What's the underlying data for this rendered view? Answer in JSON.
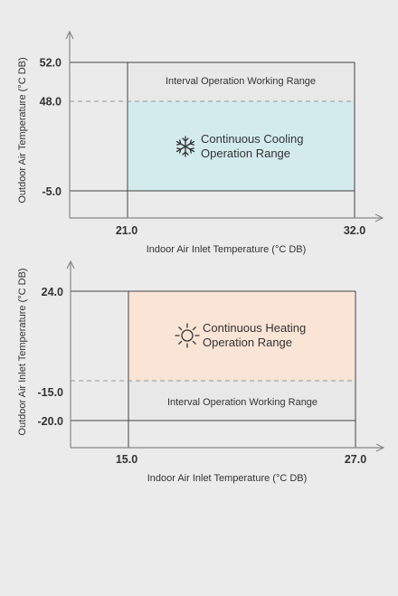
{
  "cooling": {
    "ylabel": "Outdoor Air Temperature (°C DB)",
    "xlabel": "Indoor Air Inlet Temperature (°C DB)",
    "y_ticks": [
      "52.0",
      "48.0",
      "-5.0"
    ],
    "x_ticks": [
      "21.0",
      "32.0"
    ],
    "interval_label": "Interval Operation Working Range",
    "continuous_label_line1": "Continuous Cooling",
    "continuous_label_line2": "Operation Range",
    "icon": "snowflake-icon",
    "continuous_color": "#d4ebee",
    "interval_color": "#e8e8e8"
  },
  "heating": {
    "ylabel": "Outdoor Air Inlet Temperature (°C DB)",
    "xlabel": "Indoor Air Inlet Temperature (°C DB)",
    "y_ticks": [
      "24.0",
      "-15.0",
      "-20.0"
    ],
    "x_ticks": [
      "15.0",
      "27.0"
    ],
    "interval_label": "Interval Operation Working Range",
    "continuous_label_line1": "Continuous Heating",
    "continuous_label_line2": "Operation Range",
    "icon": "sun-icon",
    "continuous_color": "#fae4d6",
    "interval_color": "#e8e8e8"
  },
  "colors": {
    "background": "#ebebeb",
    "axis": "#888888",
    "frame": "#444444",
    "dashed": "#999999"
  }
}
